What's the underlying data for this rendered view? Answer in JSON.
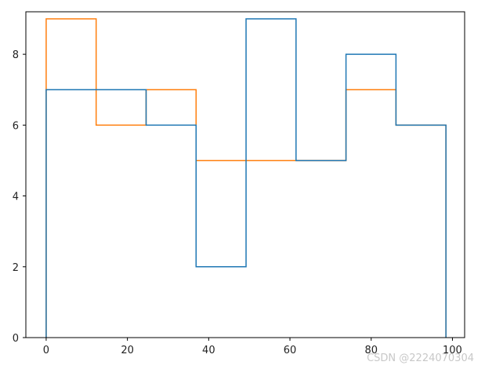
{
  "chart_data": {
    "type": "line",
    "style": "step histogram",
    "xlim": [
      -5,
      103
    ],
    "ylim": [
      0,
      9.2
    ],
    "xticks": [
      0,
      20,
      40,
      60,
      80,
      100
    ],
    "yticks": [
      0,
      2,
      4,
      6,
      8
    ],
    "xtick_labels": [
      "0",
      "20",
      "40",
      "60",
      "80",
      "100"
    ],
    "ytick_labels": [
      "0",
      "2",
      "4",
      "6",
      "8"
    ],
    "grid": false,
    "series": [
      {
        "color": "#ff7f0e",
        "edges": [
          0,
          12.3,
          24.6,
          36.9,
          49.2,
          61.5,
          73.8,
          86.1,
          98.4
        ],
        "values": [
          9,
          6,
          7,
          5,
          5,
          5,
          7,
          6
        ]
      },
      {
        "color": "#1f77b4",
        "edges": [
          0,
          12.3,
          24.6,
          36.9,
          49.2,
          61.5,
          73.8,
          86.1,
          98.4
        ],
        "values": [
          7,
          7,
          6,
          2,
          9,
          5,
          8,
          6
        ]
      }
    ]
  },
  "watermark": "CSDN @2224070304"
}
